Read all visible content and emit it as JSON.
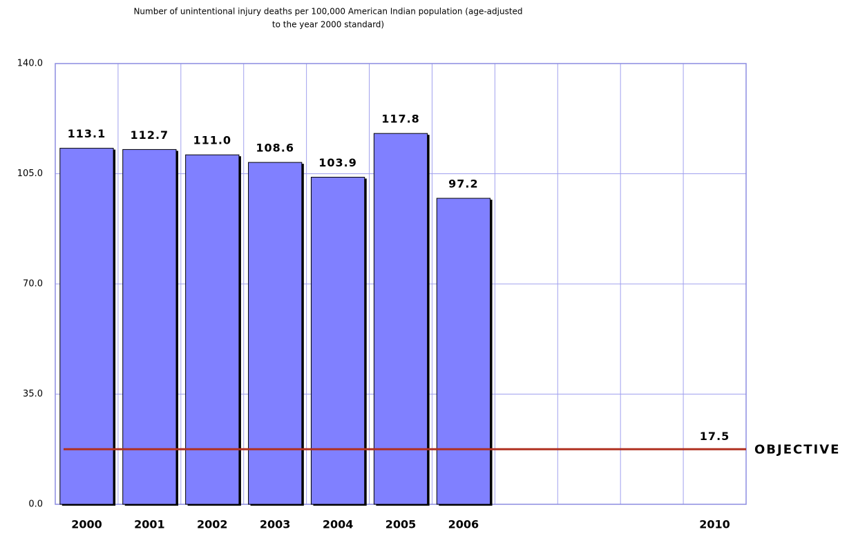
{
  "chart_data": {
    "type": "bar",
    "title": [
      "Number of unintentional injury deaths per 100,000 American Indian population (age-adjusted",
      "to the year 2000 standard)"
    ],
    "categories": [
      "2000",
      "2001",
      "2002",
      "2003",
      "2004",
      "2005",
      "2006",
      null,
      null,
      null,
      "2010"
    ],
    "values": [
      113.1,
      112.7,
      111.0,
      108.6,
      103.9,
      117.8,
      97.2,
      null,
      null,
      null,
      null
    ],
    "value_labels": [
      "113.1",
      "112.7",
      "111.0",
      "108.6",
      "103.9",
      "117.8",
      "97.2",
      null,
      null,
      null,
      null
    ],
    "color": "#8080ff",
    "ylim": [
      0,
      140
    ],
    "yticks": [
      {
        "value": 0,
        "label": "0.0"
      },
      {
        "value": 35,
        "label": "35.0"
      },
      {
        "value": 70,
        "label": "70.0"
      },
      {
        "value": 105,
        "label": "105.0"
      },
      {
        "value": 140,
        "label": "140.0"
      }
    ],
    "grid": true,
    "reference_line": {
      "name": "OBJECTIVE",
      "value": 17.5,
      "color": "#b03020"
    }
  }
}
